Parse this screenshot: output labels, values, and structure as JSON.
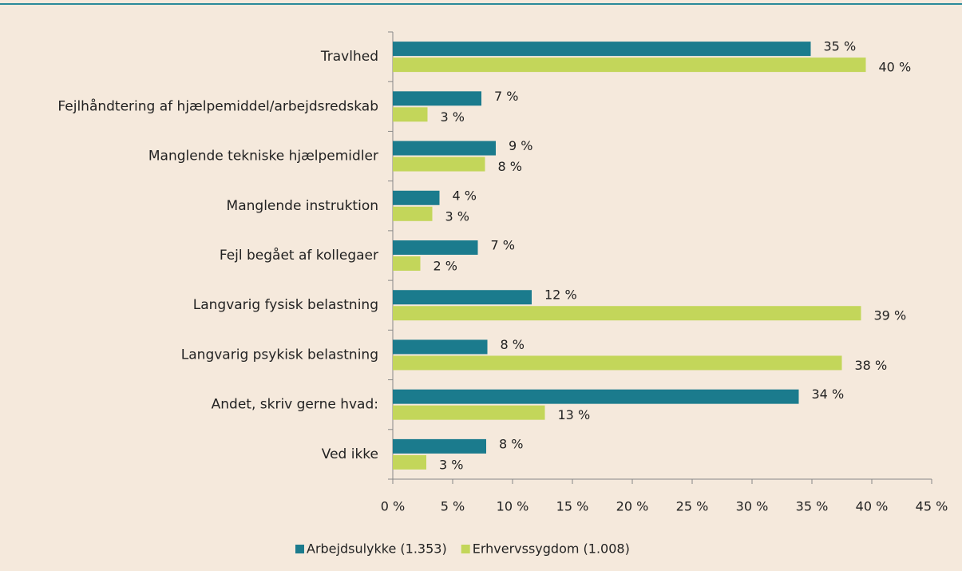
{
  "chart_data": {
    "type": "hbar",
    "categories": [
      "Travlhed",
      "Fejlhåndtering af hjælpemiddel/arbejdsredskab",
      "Manglende tekniske hjælpemidler",
      "Manglende instruktion",
      "Fejl begået af kollegaer",
      "Langvarig fysisk belastning",
      "Langvarig psykisk belastning",
      "Andet, skriv gerne hvad:",
      "Ved ikke"
    ],
    "series": [
      {
        "name": "Arbejdsulykke (1.353)",
        "color": "#1b7b8d",
        "values": [
          34.9,
          7.4,
          8.6,
          3.9,
          7.1,
          11.6,
          7.9,
          33.9,
          7.8
        ],
        "value_labels": [
          "35 %",
          "7 %",
          "9 %",
          "4 %",
          "7 %",
          "12 %",
          "8 %",
          "34 %",
          "8 %"
        ]
      },
      {
        "name": "Erhvervssygdom (1.008)",
        "color": "#c3d65a",
        "values": [
          39.5,
          2.9,
          7.7,
          3.3,
          2.3,
          39.1,
          37.5,
          12.7,
          2.8
        ],
        "value_labels": [
          "40 %",
          "3 %",
          "8 %",
          "3 %",
          "2 %",
          "39 %",
          "38 %",
          "13 %",
          "3 %"
        ]
      }
    ],
    "xlim": [
      0,
      45
    ],
    "xticks": [
      {
        "value": 0,
        "label": "0 %"
      },
      {
        "value": 5,
        "label": "5 %"
      },
      {
        "value": 10,
        "label": "10 %"
      },
      {
        "value": 15,
        "label": "15 %"
      },
      {
        "value": 20,
        "label": "20 %"
      },
      {
        "value": 25,
        "label": "25 %"
      },
      {
        "value": 30,
        "label": "30 %"
      },
      {
        "value": 35,
        "label": "35 %"
      },
      {
        "value": 40,
        "label": "40 %"
      },
      {
        "value": 45,
        "label": "45 %"
      }
    ],
    "grid": false,
    "legend": "bottom"
  }
}
